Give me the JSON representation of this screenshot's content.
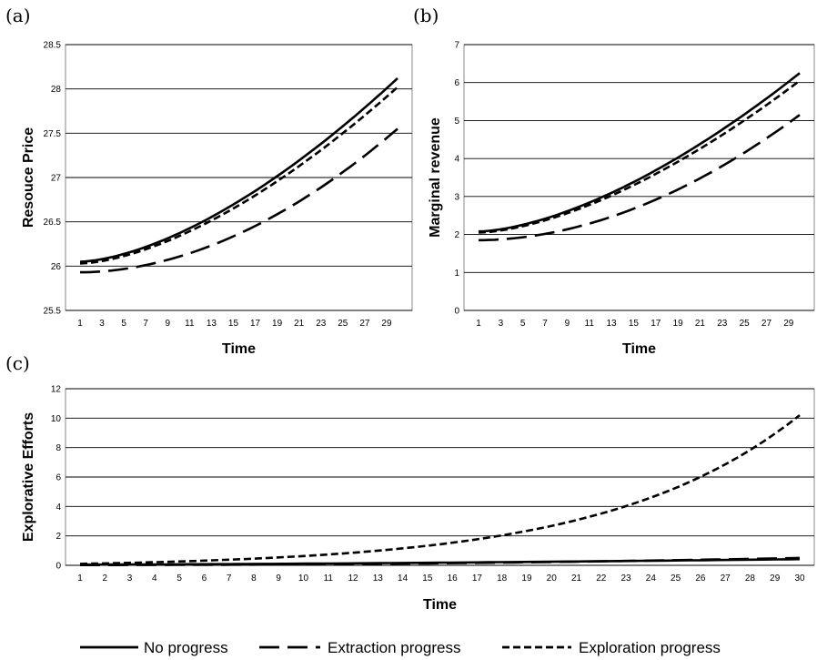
{
  "legend": [
    {
      "label": "No progress",
      "style": "solid"
    },
    {
      "label": "Extraction progress",
      "style": "longdash"
    },
    {
      "label": "Exploration progress",
      "style": "shortdash"
    }
  ],
  "chart_data": [
    {
      "type": "line",
      "panel": "(a)",
      "xlabel": "Time",
      "ylabel": "Resouce Price",
      "ylim": [
        25.5,
        28.5
      ],
      "yticks": [
        25.5,
        26,
        26.5,
        27,
        27.5,
        28,
        28.5
      ],
      "x": [
        1,
        30
      ],
      "xtick_labels": [
        "1",
        "3",
        "5",
        "7",
        "9",
        "11",
        "13",
        "15",
        "17",
        "19",
        "21",
        "23",
        "25",
        "27",
        "29"
      ],
      "grid": "horizontal",
      "series": [
        {
          "name": "No progress",
          "style": "solid",
          "start": 26.05,
          "end": 28.12,
          "exponent": 1.6
        },
        {
          "name": "Extraction progress",
          "style": "longdash",
          "start": 25.93,
          "end": 27.55,
          "exponent": 1.9
        },
        {
          "name": "Exploration progress",
          "style": "shortdash",
          "start": 26.03,
          "end": 28.02,
          "exponent": 1.6
        }
      ]
    },
    {
      "type": "line",
      "panel": "(b)",
      "xlabel": "Time",
      "ylabel": "Marginal revenue",
      "ylim": [
        0,
        7
      ],
      "yticks": [
        0,
        1,
        2,
        3,
        4,
        5,
        6,
        7
      ],
      "x": [
        1,
        30
      ],
      "xtick_labels": [
        "1",
        "3",
        "5",
        "7",
        "9",
        "11",
        "13",
        "15",
        "17",
        "19",
        "21",
        "23",
        "25",
        "27",
        "29"
      ],
      "grid": "horizontal",
      "series": [
        {
          "name": "No progress",
          "style": "solid",
          "start": 2.08,
          "end": 6.25,
          "exponent": 1.6
        },
        {
          "name": "Extraction progress",
          "style": "longdash",
          "start": 1.85,
          "end": 5.15,
          "exponent": 1.9
        },
        {
          "name": "Exploration progress",
          "style": "shortdash",
          "start": 2.05,
          "end": 6.05,
          "exponent": 1.6
        }
      ]
    },
    {
      "type": "line",
      "panel": "(c)",
      "xlabel": "Time",
      "ylabel": "Explorative Efforts",
      "ylim": [
        0,
        12
      ],
      "yticks": [
        0,
        2,
        4,
        6,
        8,
        10,
        12
      ],
      "x": [
        1,
        30
      ],
      "xtick_labels": [
        "1",
        "2",
        "3",
        "4",
        "5",
        "6",
        "7",
        "8",
        "9",
        "10",
        "11",
        "12",
        "13",
        "14",
        "15",
        "16",
        "17",
        "18",
        "19",
        "20",
        "21",
        "22",
        "23",
        "24",
        "25",
        "26",
        "27",
        "28",
        "29",
        "30"
      ],
      "grid": "horizontal",
      "series": [
        {
          "name": "No progress",
          "style": "solid",
          "start": 0.05,
          "end": 0.42,
          "exponent": 1.5
        },
        {
          "name": "Extraction progress",
          "style": "longdash",
          "start": 0.02,
          "end": 0.5,
          "exponent": 2.0
        },
        {
          "name": "Exploration progress",
          "style": "shortdash",
          "growth": 0.13,
          "start": 0.1,
          "end": 10.2
        }
      ]
    }
  ]
}
